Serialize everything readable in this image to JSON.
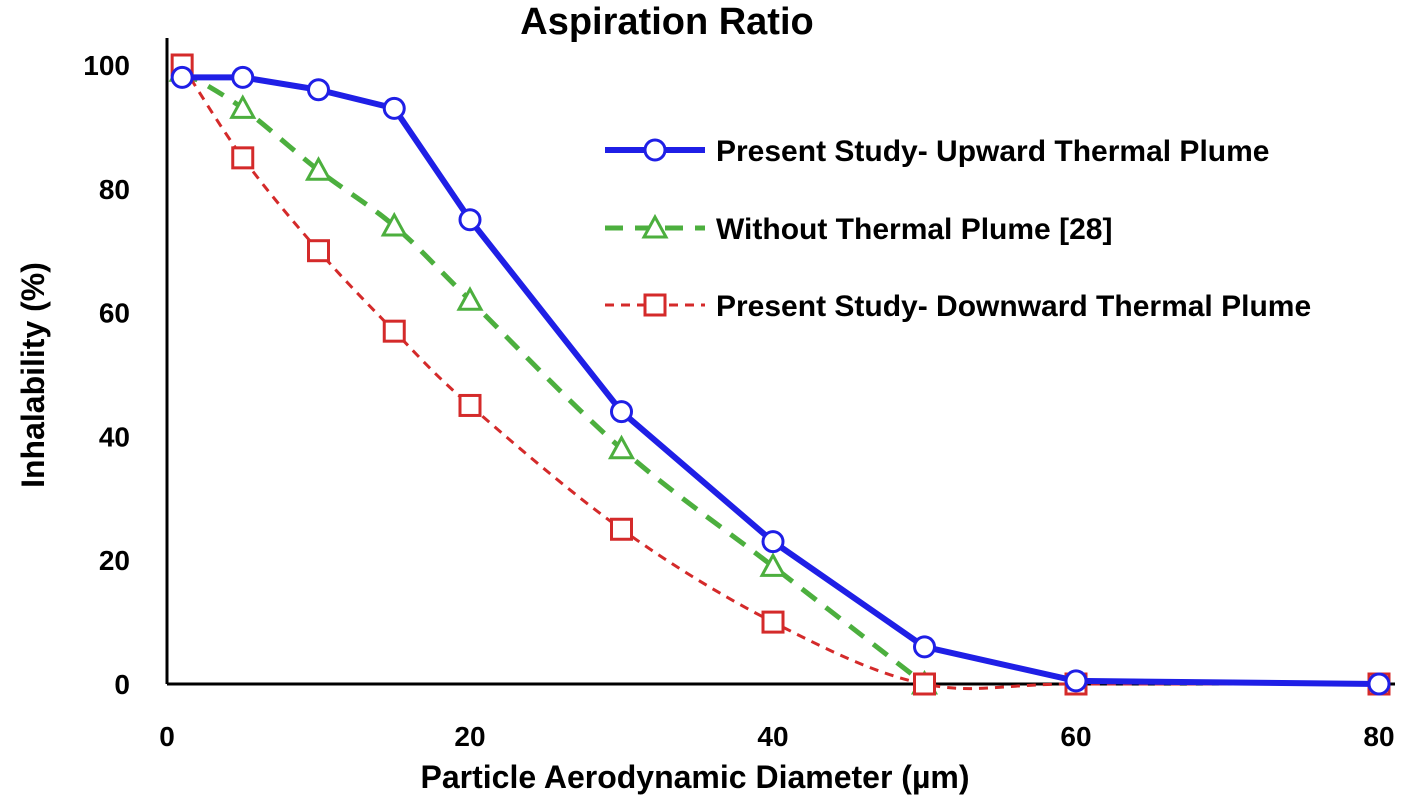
{
  "chart_data": {
    "type": "line",
    "title": "Aspiration Ratio",
    "xlabel": "Particle Aerodynamic Diameter (µm)",
    "ylabel": "Inhalability (%)",
    "xlim": [
      0,
      80
    ],
    "ylim": [
      0,
      100
    ],
    "xticks": [
      0,
      20,
      40,
      60,
      80
    ],
    "yticks": [
      0,
      20,
      40,
      60,
      80,
      100
    ],
    "grid": false,
    "legend_position": "top-right",
    "series": [
      {
        "name": "Present Study- Upward Thermal Plume",
        "color": "#1f1fe6",
        "line_style": "solid",
        "marker": "circle",
        "x": [
          1,
          5,
          10,
          15,
          20,
          30,
          40,
          50,
          60,
          80
        ],
        "y": [
          98,
          98,
          96,
          93,
          75,
          44,
          23,
          6,
          0.5,
          0
        ]
      },
      {
        "name": "Without Thermal Plume [28]",
        "color": "#4caf3e",
        "line_style": "dashed",
        "marker": "triangle",
        "x": [
          1,
          5,
          10,
          15,
          20,
          30,
          40,
          50
        ],
        "y": [
          99,
          93,
          83,
          74,
          62,
          38,
          19,
          0
        ]
      },
      {
        "name": "Present Study- Downward Thermal Plume",
        "color": "#d42a2a",
        "line_style": "dotted",
        "marker": "square",
        "x": [
          1,
          5,
          10,
          15,
          20,
          30,
          40,
          50,
          60,
          80
        ],
        "y": [
          100,
          85,
          70,
          57,
          45,
          25,
          10,
          0,
          0,
          0
        ]
      }
    ]
  }
}
